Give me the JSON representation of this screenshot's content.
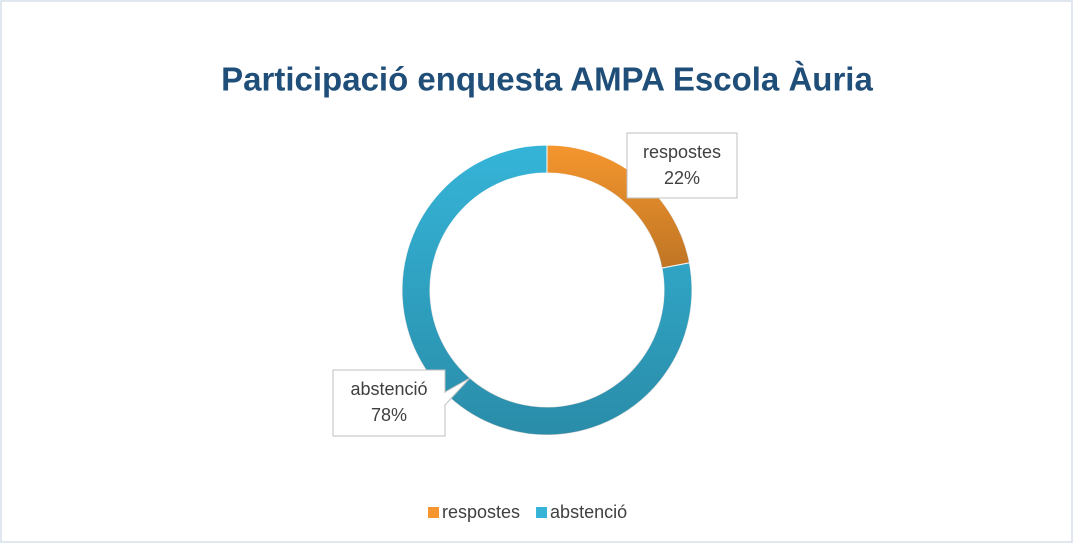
{
  "chart_data": {
    "type": "donut",
    "title": "Participació enquesta  AMPA Escola Àuria",
    "categories": [
      "respostes",
      "abstenció"
    ],
    "values": [
      22,
      78
    ],
    "value_labels": [
      "22%",
      "78%"
    ],
    "colors": [
      "#f5962e",
      "#35b4d8"
    ],
    "legend": "bottom"
  }
}
